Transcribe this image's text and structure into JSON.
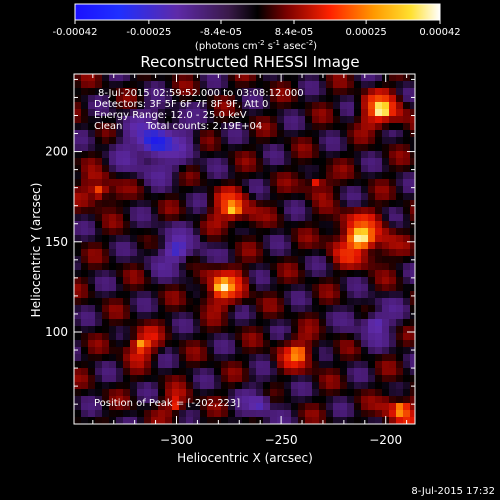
{
  "colorbar": {
    "ticks": [
      "-0.00042",
      "-0.00025",
      "-8.4e-05",
      "8.4e-05",
      "0.00025",
      "0.00042"
    ],
    "tick_values": [
      -0.00042,
      -0.00025,
      -8.4e-05,
      8.4e-05,
      0.00025,
      0.00042
    ],
    "range": [
      -0.00042,
      0.00042
    ],
    "unit_main": "(photons cm",
    "unit_exp1": "-2",
    "unit_mid": " s",
    "unit_exp2": "-1",
    "unit_end": " asec",
    "unit_exp3": "-2",
    "unit_close": ")"
  },
  "annotations": {
    "time_range": "8-Jul-2015 02:59:52.000 to 03:08:12.000",
    "detectors": "Detectors: 3F 5F 6F 7F 8F 9F, Att 0",
    "energy": "Energy Range: 12.0 - 25.0 keV",
    "clean": "Clean",
    "counts": "Total counts: 2.19E+04",
    "peak": "Position of Peak = [-202,223]"
  },
  "footer_timestamp": "8-Jul-2015 17:32",
  "colors": {
    "background": "#000000",
    "text": "#ffffff"
  },
  "chart_data": {
    "type": "heatmap",
    "title": "Reconstructed RHESSI Image",
    "xlabel": "Heliocentric X (arcsec)",
    "ylabel": "Heliocentric Y (arcsec)",
    "xlim": [
      -349,
      -186
    ],
    "ylim": [
      49,
      243
    ],
    "xticks": [
      -300,
      -250,
      -200
    ],
    "yticks": [
      100,
      150,
      200
    ],
    "xtick_labels": [
      "−300",
      "−250",
      "−200"
    ],
    "ytick_labels": [
      "100",
      "150",
      "200"
    ],
    "grid": false,
    "colormap": "rainbow-to-hot",
    "peak_position": [
      -202,
      223
    ],
    "sources": [
      {
        "x": -202,
        "y": 223,
        "r": 8,
        "amp": 1.0
      },
      {
        "x": -212,
        "y": 152,
        "r": 11,
        "amp": 0.95
      },
      {
        "x": -273,
        "y": 168,
        "r": 8,
        "amp": 0.8
      },
      {
        "x": -278,
        "y": 125,
        "r": 9,
        "amp": 0.85
      },
      {
        "x": -317,
        "y": 93,
        "r": 7,
        "amp": 0.7
      },
      {
        "x": -337,
        "y": 178,
        "r": 7,
        "amp": 0.6
      },
      {
        "x": -193,
        "y": 57,
        "r": 7,
        "amp": 0.75
      },
      {
        "x": -242,
        "y": 88,
        "r": 8,
        "amp": 0.6
      },
      {
        "x": -300,
        "y": 60,
        "r": 6,
        "amp": 0.45
      },
      {
        "x": -233,
        "y": 183,
        "r": 6,
        "amp": 0.45
      }
    ],
    "negative_regions": [
      {
        "x": -310,
        "y": 205,
        "r": 14,
        "amp": -0.8
      },
      {
        "x": -300,
        "y": 145,
        "r": 11,
        "amp": -0.5
      },
      {
        "x": -205,
        "y": 105,
        "r": 10,
        "amp": -0.45
      },
      {
        "x": -260,
        "y": 60,
        "r": 9,
        "amp": -0.4
      }
    ]
  }
}
